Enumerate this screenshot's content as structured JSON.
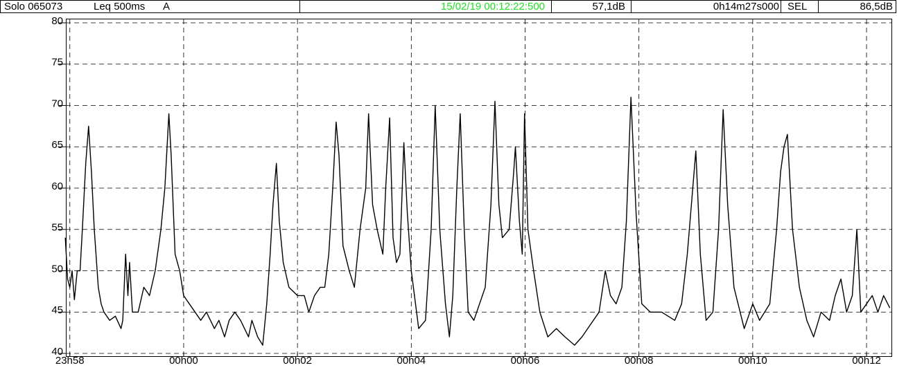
{
  "chart_data": {
    "type": "line",
    "instrument": "Solo 065073",
    "measure": "Leq 500ms",
    "weighting": "A",
    "cursor_time": "15/02/19 00:12:22:500",
    "cursor_value": "57,1dB",
    "duration": "0h14m27s000",
    "sel_label": "SEL",
    "sel_value": "86,5dB",
    "color": "#000000",
    "cursor_color": "#22dd22",
    "grid": true,
    "x": [
      -2.08,
      -2.04,
      -2.0,
      -1.96,
      -1.92,
      -1.87,
      -1.82,
      -1.78,
      -1.72,
      -1.67,
      -1.62,
      -1.57,
      -1.5,
      -1.45,
      -1.4,
      -1.3,
      -1.2,
      -1.1,
      -1.07,
      -1.02,
      -0.98,
      -0.95,
      -0.9,
      -0.8,
      -0.7,
      -0.6,
      -0.5,
      -0.4,
      -0.33,
      -0.26,
      -0.22,
      -0.15,
      -0.07,
      0.0,
      0.1,
      0.2,
      0.3,
      0.4,
      0.54,
      0.62,
      0.72,
      0.8,
      0.9,
      1.0,
      1.14,
      1.2,
      1.3,
      1.39,
      1.46,
      1.52,
      1.57,
      1.63,
      1.68,
      1.75,
      1.85,
      2.0,
      2.12,
      2.2,
      2.3,
      2.4,
      2.48,
      2.55,
      2.62,
      2.68,
      2.73,
      2.8,
      2.91,
      3.0,
      3.1,
      3.2,
      3.25,
      3.32,
      3.4,
      3.5,
      3.55,
      3.62,
      3.68,
      3.74,
      3.8,
      3.87,
      3.93,
      4.0,
      4.13,
      4.25,
      4.35,
      4.42,
      4.5,
      4.6,
      4.67,
      4.73,
      4.8,
      4.86,
      4.93,
      5.0,
      5.1,
      5.2,
      5.3,
      5.4,
      5.47,
      5.54,
      5.6,
      5.72,
      5.8,
      5.83,
      5.9,
      5.95,
      5.99,
      6.05,
      6.15,
      6.26,
      6.4,
      6.55,
      6.7,
      6.87,
      7.0,
      7.1,
      7.3,
      7.41,
      7.5,
      7.6,
      7.7,
      7.78,
      7.86,
      7.95,
      8.05,
      8.2,
      8.4,
      8.63,
      8.75,
      8.85,
      9.0,
      9.08,
      9.18,
      9.3,
      9.4,
      9.48,
      9.56,
      9.67,
      9.85,
      10.0,
      10.12,
      10.3,
      10.42,
      10.49,
      10.55,
      10.61,
      10.7,
      10.82,
      10.95,
      11.07,
      11.2,
      11.35,
      11.45,
      11.55,
      11.65,
      11.75,
      11.83,
      11.9,
      12.0,
      12.1,
      12.2,
      12.3,
      12.41
    ],
    "values": [
      54,
      49,
      48,
      50,
      46.5,
      50,
      50,
      55,
      63,
      67.5,
      62,
      55,
      48,
      46,
      45,
      44,
      44.5,
      43,
      44,
      52,
      47,
      51,
      45,
      45,
      48,
      47,
      50,
      55,
      60,
      69,
      64,
      52,
      50,
      47,
      46,
      45,
      44,
      45,
      43,
      44,
      42,
      44,
      45,
      44,
      42,
      44,
      42,
      41,
      46,
      52,
      58,
      63,
      56,
      51,
      48,
      47,
      47,
      45,
      47,
      48,
      48,
      52,
      60,
      68,
      64,
      53,
      50,
      48,
      55,
      60,
      69,
      58,
      55,
      52,
      60,
      68.5,
      54,
      51,
      52,
      65.5,
      57,
      50,
      43,
      44,
      55,
      70,
      55,
      46,
      42,
      47,
      60,
      69,
      55,
      45,
      44,
      46,
      48,
      58,
      70.5,
      58,
      54,
      55,
      62,
      65,
      56,
      52,
      69,
      55,
      50,
      45,
      42,
      43,
      42,
      41,
      42,
      43,
      45,
      50,
      47,
      46,
      48,
      56,
      71,
      57,
      46,
      45,
      45,
      44,
      46,
      52,
      64.5,
      52,
      44,
      45,
      55,
      69.5,
      58,
      48,
      43,
      46,
      44,
      46,
      55,
      62,
      65,
      66.5,
      55,
      48,
      44,
      42,
      45,
      44,
      47,
      49,
      45,
      47,
      55,
      45,
      46,
      47,
      45,
      47,
      45.5
    ],
    "xlim": [
      -2.07,
      12.45
    ],
    "xticks": [
      {
        "value": -2,
        "label": "23h58"
      },
      {
        "value": 0,
        "label": "00h00"
      },
      {
        "value": 2,
        "label": "00h02"
      },
      {
        "value": 4,
        "label": "00h04"
      },
      {
        "value": 6,
        "label": "00h06"
      },
      {
        "value": 8,
        "label": "00h08"
      },
      {
        "value": 10,
        "label": "00h10"
      },
      {
        "value": 12,
        "label": "00h12"
      }
    ],
    "ylim": [
      40,
      80
    ],
    "yticks": [
      40,
      45,
      50,
      55,
      60,
      65,
      70,
      75,
      80
    ]
  }
}
